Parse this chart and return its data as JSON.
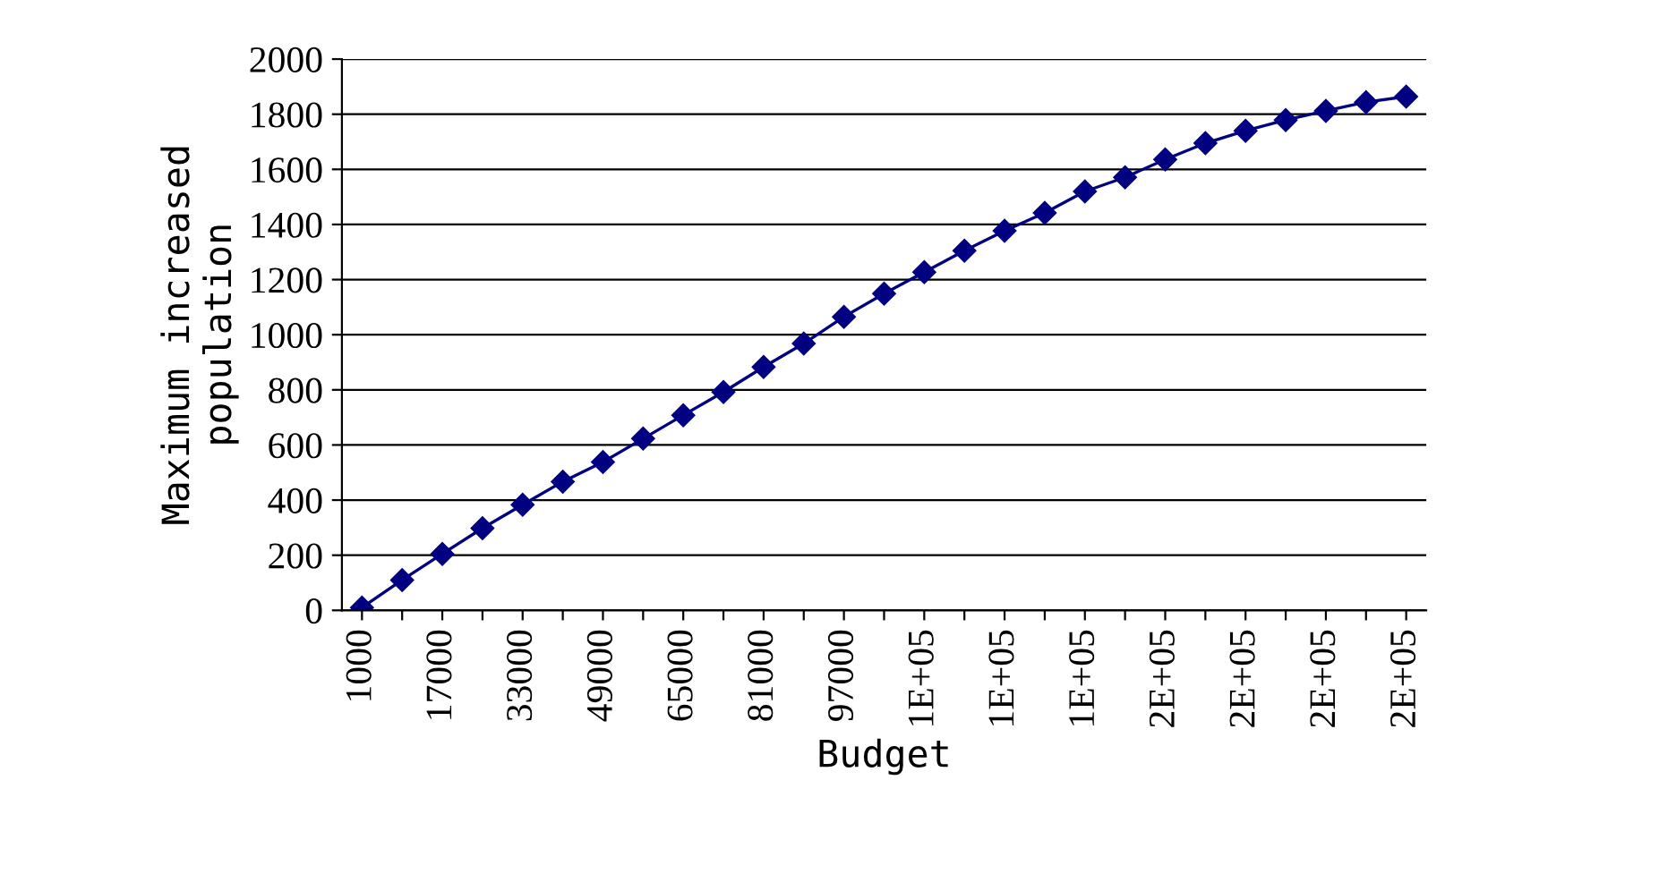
{
  "chart_data": {
    "type": "line",
    "xlabel": "Budget",
    "ylabel": "Maximum increased\npopulation",
    "categories": [
      "1000",
      null,
      "17000",
      null,
      "33000",
      null,
      "49000",
      null,
      "65000",
      null,
      "81000",
      null,
      "97000",
      null,
      "1E+05",
      null,
      "1E+05",
      null,
      "1E+05",
      null,
      "2E+05",
      null,
      "2E+05",
      null,
      "2E+05",
      null,
      "2E+05"
    ],
    "series": [
      {
        "color": "#000080",
        "values": [
          10,
          110,
          205,
          298,
          383,
          467,
          538,
          623,
          708,
          792,
          883,
          968,
          1065,
          1149,
          1227,
          1305,
          1377,
          1442,
          1520,
          1571,
          1636,
          1695,
          1740,
          1779,
          1812,
          1844,
          1864
        ]
      }
    ],
    "ylim": [
      0,
      2000
    ],
    "yticks": [
      0,
      200,
      400,
      600,
      800,
      1000,
      1200,
      1400,
      1600,
      1800,
      2000
    ],
    "grid": "y",
    "marker": "diamond",
    "line_style": "solid",
    "legend": false
  }
}
